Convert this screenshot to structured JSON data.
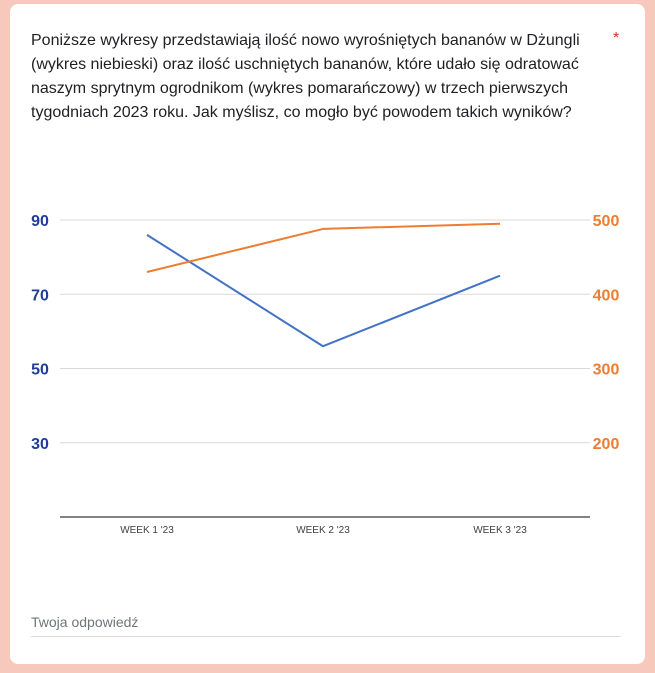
{
  "question": {
    "text": "Poniższe wykresy przedstawiają ilość nowo wyrośniętych bananów w Dżungli (wykres niebieski) oraz ilość uschniętych bananów, które udało się odratować naszym sprytnym ogrodnikom (wykres pomarańczowy) w trzech pierwszych tygodniach 2023 roku. Jak myślisz, co mogło być powodem takich wyników?",
    "required_mark": "*"
  },
  "answer": {
    "placeholder": "Twoja odpowiedź"
  },
  "colors": {
    "blue_series": "#4472c4",
    "orange_series": "#ed7d31",
    "left_axis_labels": "#1f3d99",
    "right_axis_labels": "#ed7d31"
  },
  "chart_data": {
    "type": "line",
    "categories": [
      "WEEK 1 '23",
      "WEEK 2 '23",
      "WEEK 3 '23"
    ],
    "series": [
      {
        "values": [
          86,
          56,
          75
        ],
        "axis": "left",
        "color": "#4472c4"
      },
      {
        "values": [
          430,
          488,
          495
        ],
        "axis": "right",
        "color": "#ed7d31"
      }
    ],
    "left_axis": {
      "min": 10,
      "max": 90,
      "ticks": [
        90,
        70,
        50,
        30
      ]
    },
    "right_axis": {
      "min": 100,
      "max": 500,
      "ticks": [
        500,
        400,
        300,
        200
      ]
    },
    "grid": true,
    "legend": "none"
  }
}
